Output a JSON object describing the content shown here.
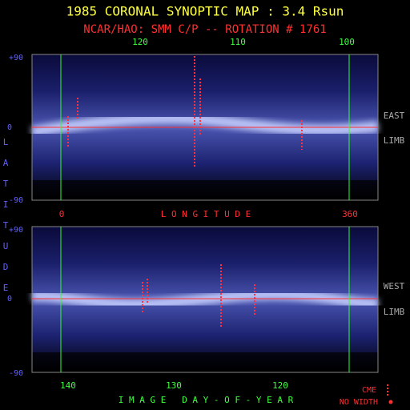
{
  "title": "1985 CORONAL SYNOPTIC MAP : 3.4 Rsun",
  "subtitle": "NCAR/HAO: SMM C/P -- ROTATION # 1761",
  "top_axis_labels": [
    "120",
    "110",
    "100"
  ],
  "top_panel": {
    "lat_labels": [
      "+90",
      "0",
      "-90"
    ],
    "side_label": [
      "EAST",
      "LIMB"
    ]
  },
  "longitude_axis": {
    "start": "0",
    "label": "L O N G I T U D E",
    "end": "360"
  },
  "latitude_label": [
    "L",
    "A",
    "T",
    "I",
    "T",
    "U",
    "D",
    "E"
  ],
  "bottom_panel": {
    "lat_labels": [
      "+90",
      "0",
      "-90"
    ],
    "side_label": [
      "WEST",
      "LIMB"
    ]
  },
  "bottom_axis_labels": [
    "140",
    "130",
    "120"
  ],
  "bottom_axis_title": "I M A G E   D A Y - O F - Y E A R",
  "legend": [
    "CME",
    "NO WIDTH"
  ]
}
